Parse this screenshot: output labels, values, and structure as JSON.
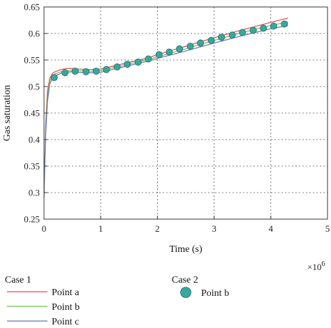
{
  "chart_data": {
    "type": "line",
    "xlabel": "Time (s)",
    "ylabel": "Gas saturation",
    "x_multiplier_label": "×10",
    "x_multiplier_exp": "6",
    "xlim": [
      0,
      5
    ],
    "ylim": [
      0.25,
      0.65
    ],
    "x_ticks": [
      "0",
      "1",
      "2",
      "3",
      "4",
      "5"
    ],
    "y_ticks": [
      "0.25",
      "0.3",
      "0.35",
      "0.4",
      "0.45",
      "0.5",
      "0.55",
      "0.6",
      "0.65"
    ],
    "grid": true,
    "legend": {
      "case1_title": "Case 1",
      "case2_title": "Case 2",
      "position": "below"
    },
    "series": [
      {
        "name": "Point a",
        "group": "Case 1",
        "kind": "line",
        "color": "#e0474c",
        "x": [
          0,
          0.03,
          0.06,
          0.1,
          0.15,
          0.2,
          0.3,
          0.4,
          0.5,
          0.6,
          0.8,
          1.0,
          1.2,
          1.4,
          1.6,
          1.8,
          2.0,
          2.5,
          3.0,
          3.5,
          4.0,
          4.3
        ],
        "y": [
          0.29,
          0.43,
          0.49,
          0.515,
          0.525,
          0.528,
          0.532,
          0.534,
          0.534,
          0.533,
          0.532,
          0.533,
          0.538,
          0.543,
          0.548,
          0.553,
          0.56,
          0.576,
          0.592,
          0.607,
          0.621,
          0.629
        ]
      },
      {
        "name": "Point b",
        "group": "Case 1",
        "kind": "line",
        "color": "#6cc24a",
        "x": [
          0,
          0.03,
          0.06,
          0.1,
          0.15,
          0.2,
          0.3,
          0.4,
          0.5,
          0.6,
          0.8,
          1.0,
          1.2,
          1.4,
          1.6,
          1.8,
          2.0,
          2.5,
          3.0,
          3.5,
          4.0,
          4.3
        ],
        "y": [
          0.3,
          0.42,
          0.48,
          0.51,
          0.52,
          0.524,
          0.528,
          0.53,
          0.53,
          0.53,
          0.529,
          0.53,
          0.535,
          0.54,
          0.545,
          0.55,
          0.556,
          0.571,
          0.587,
          0.602,
          0.615,
          0.622
        ]
      },
      {
        "name": "Point c",
        "group": "Case 1",
        "kind": "line",
        "color": "#6a6fb3",
        "x": [
          0,
          0.03,
          0.06,
          0.1,
          0.15,
          0.2,
          0.3,
          0.4,
          0.5,
          0.6,
          0.8,
          1.0,
          1.2,
          1.4,
          1.6,
          1.8,
          2.0,
          2.5,
          3.0,
          3.5,
          4.0,
          4.3
        ],
        "y": [
          0.3,
          0.41,
          0.47,
          0.505,
          0.515,
          0.52,
          0.525,
          0.527,
          0.528,
          0.527,
          0.526,
          0.527,
          0.532,
          0.537,
          0.542,
          0.547,
          0.553,
          0.567,
          0.582,
          0.596,
          0.609,
          0.615
        ]
      },
      {
        "name": "Point b",
        "group": "Case 2",
        "kind": "scatter",
        "color": "#3aa79e",
        "x": [
          0.18,
          0.37,
          0.55,
          0.74,
          0.92,
          1.1,
          1.29,
          1.47,
          1.66,
          1.84,
          2.03,
          2.21,
          2.39,
          2.58,
          2.76,
          2.95,
          3.13,
          3.32,
          3.5,
          3.69,
          3.87,
          4.05,
          4.24
        ],
        "y": [
          0.517,
          0.526,
          0.529,
          0.528,
          0.529,
          0.532,
          0.537,
          0.542,
          0.546,
          0.552,
          0.56,
          0.565,
          0.571,
          0.576,
          0.582,
          0.587,
          0.593,
          0.597,
          0.602,
          0.606,
          0.61,
          0.614,
          0.618
        ]
      }
    ]
  }
}
